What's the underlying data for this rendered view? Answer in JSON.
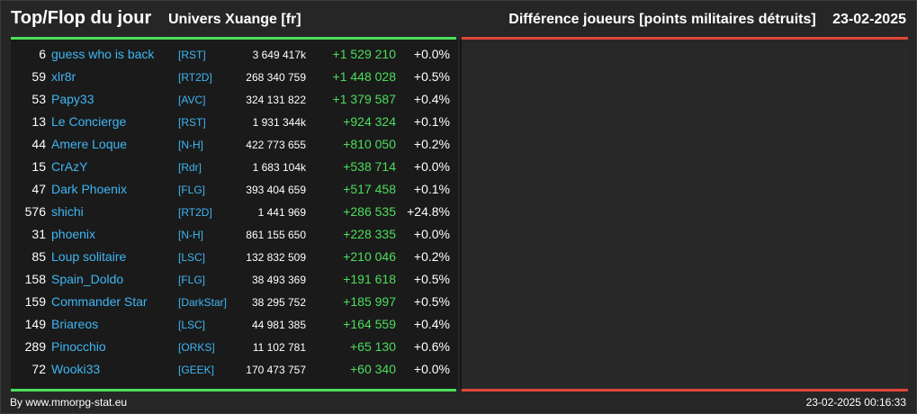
{
  "header": {
    "title": "Top/Flop du jour",
    "universe": "Univers Xuange [fr]",
    "metric": "Différence joueurs [points militaires détruits]",
    "date": "23-02-2025"
  },
  "rows": [
    {
      "rank": "6",
      "name": "guess who is back",
      "ally": "[RST]",
      "points": "3 649 417k",
      "diff": "+1 529 210",
      "pct": "+0.0%"
    },
    {
      "rank": "59",
      "name": "xlr8r",
      "ally": "[RT2D]",
      "points": "268 340 759",
      "diff": "+1 448 028",
      "pct": "+0.5%"
    },
    {
      "rank": "53",
      "name": "Papy33",
      "ally": "[AVC]",
      "points": "324 131 822",
      "diff": "+1 379 587",
      "pct": "+0.4%"
    },
    {
      "rank": "13",
      "name": "Le Concierge",
      "ally": "[RST]",
      "points": "1 931 344k",
      "diff": "+924 324",
      "pct": "+0.1%"
    },
    {
      "rank": "44",
      "name": "Amere Loque",
      "ally": "[N-H]",
      "points": "422 773 655",
      "diff": "+810 050",
      "pct": "+0.2%"
    },
    {
      "rank": "15",
      "name": "CrAzY",
      "ally": "[Rdr]",
      "points": "1 683 104k",
      "diff": "+538 714",
      "pct": "+0.0%"
    },
    {
      "rank": "47",
      "name": "Dark Phoenix",
      "ally": "[FLG]",
      "points": "393 404 659",
      "diff": "+517 458",
      "pct": "+0.1%"
    },
    {
      "rank": "576",
      "name": "shichi",
      "ally": "[RT2D]",
      "points": "1 441 969",
      "diff": "+286 535",
      "pct": "+24.8%"
    },
    {
      "rank": "31",
      "name": "phoenix",
      "ally": "[N-H]",
      "points": "861 155 650",
      "diff": "+228 335",
      "pct": "+0.0%"
    },
    {
      "rank": "85",
      "name": "Loup solitaire",
      "ally": "[LSC]",
      "points": "132 832 509",
      "diff": "+210 046",
      "pct": "+0.2%"
    },
    {
      "rank": "158",
      "name": "Spain_Doldo",
      "ally": "[FLG]",
      "points": "38 493 369",
      "diff": "+191 618",
      "pct": "+0.5%"
    },
    {
      "rank": "159",
      "name": "Commander Star",
      "ally": "[DarkStar]",
      "points": "38 295 752",
      "diff": "+185 997",
      "pct": "+0.5%"
    },
    {
      "rank": "149",
      "name": "Briareos",
      "ally": "[LSC]",
      "points": "44 981 385",
      "diff": "+164 559",
      "pct": "+0.4%"
    },
    {
      "rank": "289",
      "name": "Pinocchio",
      "ally": "[ORKS]",
      "points": "11 102 781",
      "diff": "+65 130",
      "pct": "+0.6%"
    },
    {
      "rank": "72",
      "name": "Wooki33",
      "ally": "[GEEK]",
      "points": "170 473 757",
      "diff": "+60 340",
      "pct": "+0.0%"
    }
  ],
  "footer": {
    "credit": "By www.mmorpg-stat.eu",
    "timestamp": "23-02-2025 00:16:33"
  },
  "colors": {
    "gain": "#4cde5c",
    "loss": "#e0453c",
    "link": "#3fb6f2"
  }
}
